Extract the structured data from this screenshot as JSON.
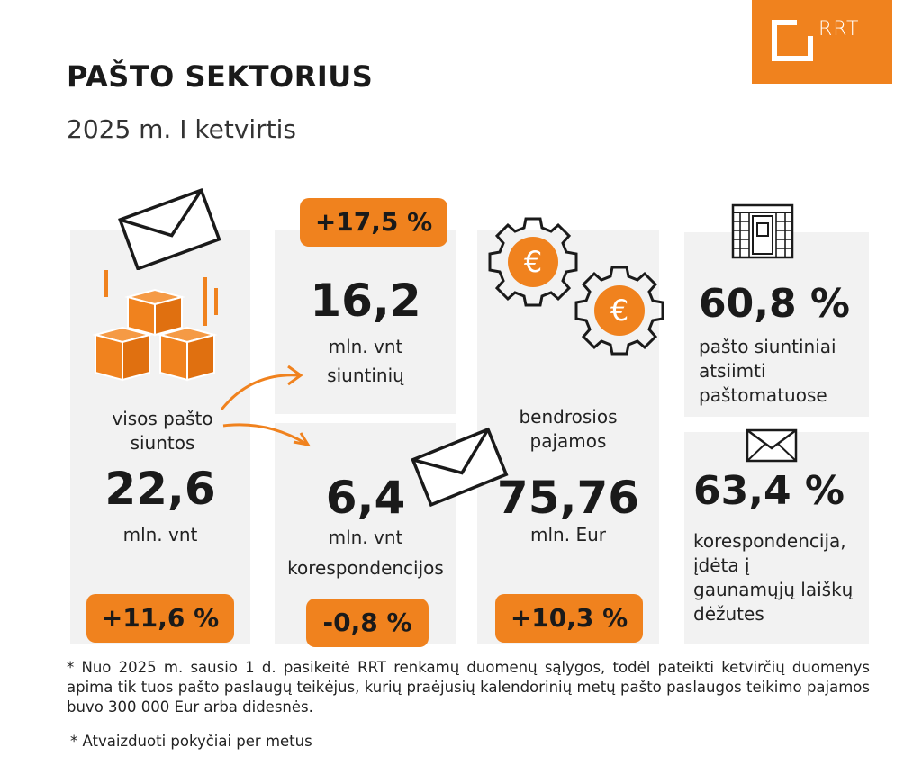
{
  "logo": {
    "text": "RRT"
  },
  "header": {
    "title": "PAŠTO SEKTORIUS",
    "subtitle": "2025 m. I ketvirtis"
  },
  "total": {
    "label": "visos pašto siuntos",
    "value": "22,6",
    "unit": "mln. vnt",
    "change": "+11,6 %"
  },
  "parcels": {
    "change": "+17,5 %",
    "value": "16,2",
    "unit": "mln. vnt",
    "label": "siuntinių"
  },
  "correspondence": {
    "value": "6,4",
    "unit": "mln. vnt",
    "label": "korespondencijos",
    "change": "-0,8 %"
  },
  "revenue": {
    "label": "bendrosios pajamos",
    "value": "75,76",
    "unit": "mln. Eur",
    "change": "+10,3 %"
  },
  "lockers": {
    "value": "60,8 %",
    "label": "pašto siuntiniai atsiimti paštomatuose"
  },
  "mailboxes": {
    "value": "63,4 %",
    "label": "korespondencija, įdėta į gaunamųjų laiškų dėžutes"
  },
  "footnotes": {
    "note1": "* Nuo 2025 m. sausio 1 d. pasikeitė RRT renkamų duomenų sąlygos, todėl pateikti ketvirčių duomenys apima tik tuos pašto paslaugų teikėjus, kurių praėjusių kalendorinių metų pašto paslaugos teikimo pajamos buvo 300 000 Eur arba didesnės.",
    "note2": "* Atvaizduoti pokyčiai per metus"
  },
  "colors": {
    "accent": "#f0821e",
    "panel": "#f2f2f2",
    "text": "#1a1a1a"
  },
  "icons": [
    "envelope-icon",
    "boxes-icon",
    "euro-gear-icon",
    "parcel-locker-icon",
    "arrow-icon"
  ]
}
